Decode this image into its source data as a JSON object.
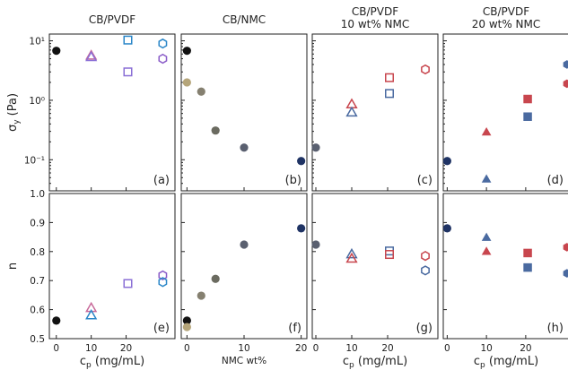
{
  "column_titles": [
    [
      "CB/PVDF"
    ],
    [
      "CB/NMC"
    ],
    [
      "CB/PVDF",
      "10 wt% NMC"
    ],
    [
      "CB/PVDF",
      "20 wt% NMC"
    ]
  ],
  "top_ylabel": {
    "main": "σ",
    "sub": "y",
    "unit": " (Pa)"
  },
  "bottom_ylabel": "n",
  "xlabels": [
    {
      "main": "c",
      "sub": "p",
      "unit": " (mg/mL)"
    },
    {
      "main": "NMC  wt%",
      "sub": "",
      "unit": ""
    },
    {
      "main": "c",
      "sub": "p",
      "unit": " (mg/mL)"
    },
    {
      "main": "c",
      "sub": "p",
      "unit": " (mg/mL)"
    }
  ],
  "top_ticks": {
    "values": [
      0.1,
      1,
      10
    ],
    "labels": [
      "10⁻¹",
      "10⁰",
      "10¹"
    ]
  },
  "bottom_ticks": {
    "values": [
      0.5,
      0.6,
      0.7,
      0.8,
      0.9,
      1.0
    ],
    "labels": [
      "0.5",
      "0.6",
      "0.7",
      "0.8",
      "0.9",
      "1.0"
    ]
  },
  "x_ticks": [
    {
      "values": [
        0,
        10,
        20
      ],
      "labels": [
        "0",
        "10",
        "20"
      ]
    },
    {
      "values": [
        0,
        10,
        20
      ],
      "labels": [
        "0",
        "10",
        "20"
      ]
    },
    {
      "values": [
        0,
        10,
        20
      ],
      "labels": [
        "0",
        "10",
        "20"
      ]
    },
    {
      "values": [
        0,
        10,
        20
      ],
      "labels": [
        "0",
        "10",
        "20"
      ]
    }
  ],
  "colors": {
    "black": "#111111",
    "navy": "#1f3364",
    "slate": "#4a5e8c",
    "gray_blue": "#5a6070",
    "olive_gray": "#6b6b60",
    "gray": "#858070",
    "tan": "#b5a57a",
    "pink": "#c86a9a",
    "purple": "#8a6fd6",
    "cyan_blue": "#2a86c8",
    "violet": "#8a5cc8",
    "red": "#c8464e",
    "steel": "#4a6aa0"
  },
  "chart_data": [
    {
      "type": "scatter",
      "panel": "(a)",
      "yscale": "log",
      "xlim": [
        -2,
        34
      ],
      "ylim": [
        0.03,
        13
      ],
      "points": [
        {
          "x": 0,
          "y": 6.8,
          "marker": "circle",
          "fill": true,
          "color": "black"
        },
        {
          "x": 10,
          "y": 5.6,
          "marker": "triangle",
          "fill": false,
          "color": "pink"
        },
        {
          "x": 10,
          "y": 5.3,
          "marker": "triangle",
          "fill": false,
          "color": "purple"
        },
        {
          "x": 20.5,
          "y": 10.3,
          "marker": "square",
          "fill": false,
          "color": "cyan_blue"
        },
        {
          "x": 20.5,
          "y": 3.0,
          "marker": "square",
          "fill": false,
          "color": "purple"
        },
        {
          "x": 30.5,
          "y": 9.0,
          "marker": "hexagon",
          "fill": false,
          "color": "cyan_blue"
        },
        {
          "x": 30.5,
          "y": 5.0,
          "marker": "hexagon",
          "fill": false,
          "color": "violet"
        }
      ]
    },
    {
      "type": "scatter",
      "panel": "(b)",
      "yscale": "log",
      "xlim": [
        -1,
        21
      ],
      "ylim": [
        0.03,
        13
      ],
      "points": [
        {
          "x": 0,
          "y": 6.8,
          "marker": "circle",
          "fill": true,
          "color": "black"
        },
        {
          "x": 0,
          "y": 2.0,
          "marker": "circle",
          "fill": true,
          "color": "tan"
        },
        {
          "x": 2.5,
          "y": 1.4,
          "marker": "circle",
          "fill": true,
          "color": "gray"
        },
        {
          "x": 5,
          "y": 0.31,
          "marker": "circle",
          "fill": true,
          "color": "olive_gray"
        },
        {
          "x": 10,
          "y": 0.16,
          "marker": "circle",
          "fill": true,
          "color": "gray_blue"
        },
        {
          "x": 20,
          "y": 0.095,
          "marker": "circle",
          "fill": true,
          "color": "navy"
        }
      ]
    },
    {
      "type": "scatter",
      "panel": "(c)",
      "yscale": "log",
      "xlim": [
        -1,
        34
      ],
      "ylim": [
        0.03,
        13
      ],
      "points": [
        {
          "x": 0,
          "y": 0.16,
          "marker": "circle",
          "fill": true,
          "color": "gray_blue"
        },
        {
          "x": 10,
          "y": 0.85,
          "marker": "triangle",
          "fill": false,
          "color": "red"
        },
        {
          "x": 10,
          "y": 0.62,
          "marker": "triangle",
          "fill": false,
          "color": "steel"
        },
        {
          "x": 20.5,
          "y": 2.4,
          "marker": "square",
          "fill": false,
          "color": "red"
        },
        {
          "x": 20.5,
          "y": 1.3,
          "marker": "square",
          "fill": false,
          "color": "steel"
        },
        {
          "x": 30.5,
          "y": 3.3,
          "marker": "hexagon",
          "fill": false,
          "color": "red"
        }
      ]
    },
    {
      "type": "scatter",
      "panel": "(d)",
      "yscale": "log",
      "xlim": [
        -1,
        31
      ],
      "ylim": [
        0.03,
        13
      ],
      "points": [
        {
          "x": 0,
          "y": 0.095,
          "marker": "circle",
          "fill": true,
          "color": "navy"
        },
        {
          "x": 10,
          "y": 0.29,
          "marker": "triangle",
          "fill": true,
          "color": "red"
        },
        {
          "x": 10,
          "y": 0.047,
          "marker": "triangle",
          "fill": true,
          "color": "steel"
        },
        {
          "x": 20.5,
          "y": 1.05,
          "marker": "square",
          "fill": true,
          "color": "red"
        },
        {
          "x": 20.5,
          "y": 0.53,
          "marker": "square",
          "fill": true,
          "color": "steel"
        },
        {
          "x": 30.5,
          "y": 4.0,
          "marker": "hexagon",
          "fill": true,
          "color": "steel"
        },
        {
          "x": 30.5,
          "y": 1.9,
          "marker": "hexagon",
          "fill": true,
          "color": "red"
        }
      ]
    },
    {
      "type": "scatter",
      "panel": "(e)",
      "xlim": [
        -2,
        34
      ],
      "ylim": [
        0.5,
        1.0
      ],
      "points": [
        {
          "x": 0,
          "y": 0.562,
          "marker": "circle",
          "fill": true,
          "color": "black"
        },
        {
          "x": 10,
          "y": 0.605,
          "marker": "triangle",
          "fill": false,
          "color": "pink"
        },
        {
          "x": 10,
          "y": 0.58,
          "marker": "triangle",
          "fill": false,
          "color": "cyan_blue"
        },
        {
          "x": 20.5,
          "y": 0.69,
          "marker": "square",
          "fill": false,
          "color": "purple"
        },
        {
          "x": 30.5,
          "y": 0.718,
          "marker": "hexagon",
          "fill": false,
          "color": "violet"
        },
        {
          "x": 30.5,
          "y": 0.695,
          "marker": "hexagon",
          "fill": false,
          "color": "cyan_blue"
        }
      ]
    },
    {
      "type": "scatter",
      "panel": "(f)",
      "xlim": [
        -1,
        21
      ],
      "ylim": [
        0.5,
        1.0
      ],
      "points": [
        {
          "x": 0,
          "y": 0.562,
          "marker": "circle",
          "fill": true,
          "color": "black"
        },
        {
          "x": 0,
          "y": 0.54,
          "marker": "circle",
          "fill": true,
          "color": "tan"
        },
        {
          "x": 2.5,
          "y": 0.648,
          "marker": "circle",
          "fill": true,
          "color": "gray"
        },
        {
          "x": 5,
          "y": 0.706,
          "marker": "circle",
          "fill": true,
          "color": "olive_gray"
        },
        {
          "x": 10,
          "y": 0.824,
          "marker": "circle",
          "fill": true,
          "color": "gray_blue"
        },
        {
          "x": 20,
          "y": 0.88,
          "marker": "circle",
          "fill": true,
          "color": "navy"
        }
      ]
    },
    {
      "type": "scatter",
      "panel": "(g)",
      "xlim": [
        -1,
        34
      ],
      "ylim": [
        0.5,
        1.0
      ],
      "points": [
        {
          "x": 0,
          "y": 0.824,
          "marker": "circle",
          "fill": true,
          "color": "gray_blue"
        },
        {
          "x": 10,
          "y": 0.79,
          "marker": "triangle",
          "fill": false,
          "color": "steel"
        },
        {
          "x": 10,
          "y": 0.775,
          "marker": "triangle",
          "fill": false,
          "color": "red"
        },
        {
          "x": 20.5,
          "y": 0.802,
          "marker": "square",
          "fill": false,
          "color": "steel"
        },
        {
          "x": 20.5,
          "y": 0.79,
          "marker": "square",
          "fill": false,
          "color": "red"
        },
        {
          "x": 30.5,
          "y": 0.785,
          "marker": "hexagon",
          "fill": false,
          "color": "red"
        },
        {
          "x": 30.5,
          "y": 0.735,
          "marker": "hexagon",
          "fill": false,
          "color": "steel"
        }
      ]
    },
    {
      "type": "scatter",
      "panel": "(h)",
      "xlim": [
        -1,
        31
      ],
      "ylim": [
        0.5,
        1.0
      ],
      "points": [
        {
          "x": 0,
          "y": 0.88,
          "marker": "circle",
          "fill": true,
          "color": "navy"
        },
        {
          "x": 10,
          "y": 0.848,
          "marker": "triangle",
          "fill": true,
          "color": "steel"
        },
        {
          "x": 10,
          "y": 0.8,
          "marker": "triangle",
          "fill": true,
          "color": "red"
        },
        {
          "x": 20.5,
          "y": 0.795,
          "marker": "square",
          "fill": true,
          "color": "red"
        },
        {
          "x": 20.5,
          "y": 0.745,
          "marker": "square",
          "fill": true,
          "color": "steel"
        },
        {
          "x": 30.5,
          "y": 0.815,
          "marker": "hexagon",
          "fill": true,
          "color": "red"
        },
        {
          "x": 30.5,
          "y": 0.725,
          "marker": "hexagon",
          "fill": true,
          "color": "steel"
        }
      ]
    }
  ]
}
